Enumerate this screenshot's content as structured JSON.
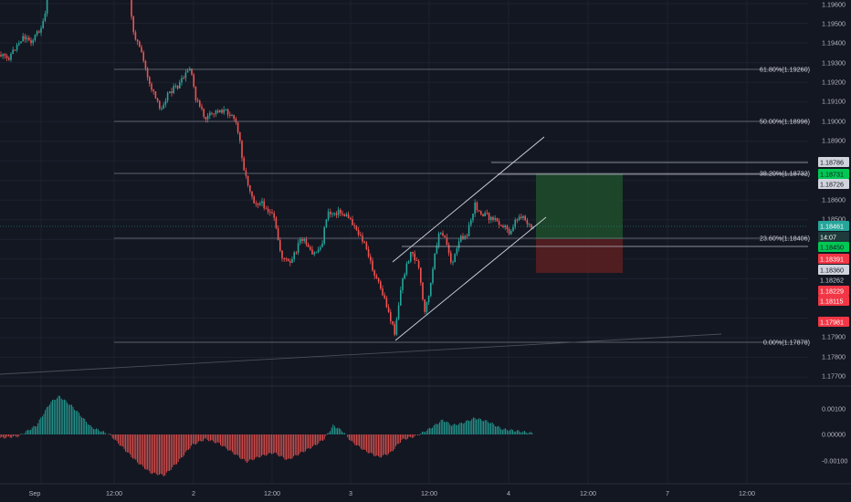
{
  "colors": {
    "background": "#131722",
    "up": "#26a69a",
    "down": "#ef5350",
    "grid": "#1e2230",
    "axis_text": "#b2b5be",
    "fib_line": "#787b86",
    "target_zone": "#1e4d2b",
    "stop_zone": "#5c1f21"
  },
  "price_axis": {
    "ticks": [
      "1.19600",
      "1.19500",
      "1.19400",
      "1.19300",
      "1.19200",
      "1.19100",
      "1.19000",
      "1.18900",
      "1.18800",
      "1.18600",
      "1.18500",
      "1.17900",
      "1.17800",
      "1.17700"
    ]
  },
  "time_axis": {
    "labels": [
      "Sep",
      "12:00",
      "2",
      "12:00",
      "3",
      "12:00",
      "4",
      "12:00",
      "7",
      "12:00"
    ]
  },
  "fib_levels": [
    {
      "label": "61.80%(1.19260)"
    },
    {
      "label": "50.00%(1.18996)"
    },
    {
      "label": "38.20%(1.18732)"
    },
    {
      "label": "23.60%(1.18406)"
    },
    {
      "label": "0.00%(1.17878)"
    }
  ],
  "price_tags": [
    {
      "text": "1.18786",
      "bg": "#d1d4dc",
      "fg": "#131722"
    },
    {
      "text": "1.18731",
      "bg": "#00c853",
      "fg": "#131722"
    },
    {
      "text": "1.18726",
      "bg": "#d1d4dc",
      "fg": "#131722"
    },
    {
      "text": "1.18461",
      "bg": "#26a69a",
      "fg": "#ffffff"
    },
    {
      "text": "14:07",
      "bg": "#1e3a3a",
      "fg": "#ffffff"
    },
    {
      "text": "1.18450",
      "bg": "#00c853",
      "fg": "#131722"
    },
    {
      "text": "1.18391",
      "bg": "#f23645",
      "fg": "#ffffff"
    },
    {
      "text": "1.18360",
      "bg": "#d1d4dc",
      "fg": "#131722"
    },
    {
      "text": "1.18262",
      "bg": "#131722",
      "fg": "#d1d4dc"
    },
    {
      "text": "1.18229",
      "bg": "#f23645",
      "fg": "#ffffff"
    },
    {
      "text": "1.18115",
      "bg": "#f23645",
      "fg": "#ffffff"
    },
    {
      "text": "1.17981",
      "bg": "#f23645",
      "fg": "#ffffff"
    }
  ],
  "oscillator": {
    "ticks": [
      "0.00100",
      "0.00000",
      "-0.00100"
    ]
  }
}
